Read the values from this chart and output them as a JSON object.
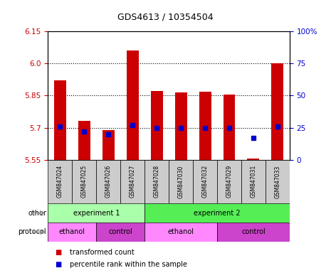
{
  "title": "GDS4613 / 10354504",
  "samples": [
    "GSM847024",
    "GSM847025",
    "GSM847026",
    "GSM847027",
    "GSM847028",
    "GSM847030",
    "GSM847032",
    "GSM847029",
    "GSM847031",
    "GSM847033"
  ],
  "bar_values": [
    5.92,
    5.73,
    5.69,
    6.06,
    5.87,
    5.865,
    5.868,
    5.855,
    5.555,
    6.0
  ],
  "base_value": 5.55,
  "percentile_values": [
    26,
    22,
    20,
    27,
    25,
    25,
    25,
    25,
    17,
    26
  ],
  "ylim": [
    5.55,
    6.15
  ],
  "yticks_left": [
    5.55,
    5.7,
    5.85,
    6.0,
    6.15
  ],
  "yticks_right": [
    0,
    25,
    50,
    75,
    100
  ],
  "right_ylim": [
    0,
    100
  ],
  "red_color": "#cc0000",
  "blue_color": "#0000cc",
  "bg_color": "#ffffff",
  "exp1_color": "#aaffaa",
  "exp2_color": "#55ee55",
  "ethanol_color": "#ff88ff",
  "control_color": "#cc44cc",
  "sample_bg": "#cccccc",
  "other_label": "other",
  "protocol_label": "protocol",
  "exp1_label": "experiment 1",
  "exp2_label": "experiment 2",
  "ethanol_label": "ethanol",
  "control_label": "control",
  "legend_red": "transformed count",
  "legend_blue": "percentile rank within the sample",
  "exp1_samples": [
    0,
    1,
    2,
    3
  ],
  "exp2_samples": [
    4,
    5,
    6,
    7,
    8,
    9
  ],
  "ethanol1_samples": [
    0,
    1
  ],
  "control1_samples": [
    2,
    3
  ],
  "ethanol2_samples": [
    4,
    5,
    6
  ],
  "control2_samples": [
    7,
    8,
    9
  ]
}
